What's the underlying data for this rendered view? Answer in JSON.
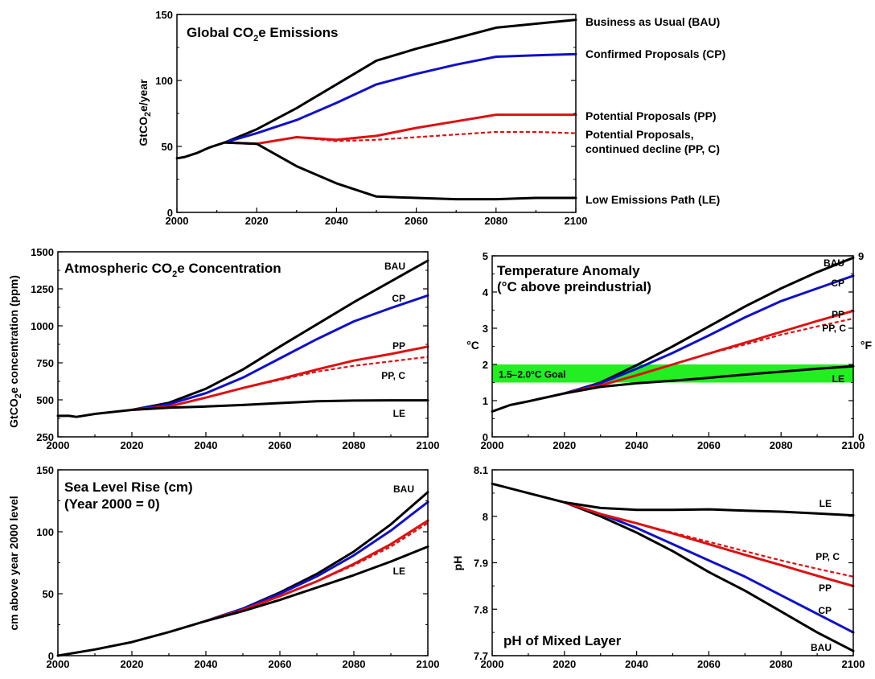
{
  "colors": {
    "black": "#000000",
    "blue": "#1010c8",
    "red": "#dd1111",
    "green": "#22ee22"
  },
  "chart_data": [
    {
      "id": "emissions",
      "type": "line",
      "title": "Global CO",
      "title_sub": "2",
      "title_rest": "e Emissions",
      "ylabel": "GtCO",
      "ylabel_sub": "2",
      "ylabel_rest": "e/year",
      "xlim": [
        2000,
        2100
      ],
      "ylim": [
        0,
        150
      ],
      "xticks": [
        2000,
        2020,
        2040,
        2060,
        2080,
        2100
      ],
      "yticks": [
        0,
        50,
        100,
        150
      ],
      "series": [
        {
          "name": "Business as Usual (BAU)",
          "color": "black",
          "dashed": false,
          "x": [
            2000,
            2002,
            2005,
            2008,
            2012,
            2020,
            2030,
            2040,
            2050,
            2060,
            2070,
            2080,
            2090,
            2100
          ],
          "y": [
            41,
            42,
            45,
            49,
            53,
            63,
            79,
            97,
            115,
            124,
            132,
            140,
            143,
            146
          ]
        },
        {
          "name": "Confirmed Proposals (CP)",
          "color": "blue",
          "dashed": false,
          "x": [
            2012,
            2020,
            2030,
            2040,
            2050,
            2060,
            2070,
            2080,
            2090,
            2100
          ],
          "y": [
            53,
            60,
            70,
            83,
            97,
            105,
            112,
            118,
            119,
            120
          ]
        },
        {
          "name": "Potential Proposals (PP)",
          "color": "red",
          "dashed": false,
          "x": [
            2012,
            2020,
            2030,
            2040,
            2050,
            2060,
            2070,
            2080,
            2090,
            2100
          ],
          "y": [
            53,
            52,
            57,
            55,
            58,
            64,
            69,
            74,
            74,
            74
          ]
        },
        {
          "name": "Potential Proposals, continued decline (PP, C)",
          "label_lines": [
            "Potential Proposals,",
            "continued decline (PP, C)"
          ],
          "color": "red",
          "dashed": true,
          "x": [
            2020,
            2030,
            2040,
            2050,
            2060,
            2070,
            2080,
            2090,
            2100
          ],
          "y": [
            52,
            57,
            54,
            55,
            57,
            59,
            61,
            61,
            60
          ]
        },
        {
          "name": "Low Emissions Path (LE)",
          "color": "black",
          "dashed": false,
          "x": [
            2012,
            2020,
            2030,
            2040,
            2050,
            2060,
            2070,
            2080,
            2090,
            2100
          ],
          "y": [
            53,
            52,
            35,
            22,
            12,
            11,
            10,
            10,
            11,
            11
          ]
        }
      ]
    },
    {
      "id": "concentration",
      "type": "line",
      "title": "Atmospheric CO",
      "title_sub": "2",
      "title_rest": "e Concentration",
      "ylabel": "GtCO",
      "ylabel_sub": "2",
      "ylabel_rest": "e concentration (ppm)",
      "xlim": [
        2000,
        2100
      ],
      "ylim": [
        250,
        1500
      ],
      "xticks": [
        2000,
        2020,
        2040,
        2060,
        2080,
        2100
      ],
      "yticks": [
        250,
        500,
        750,
        1000,
        1250,
        1500
      ],
      "series": [
        {
          "name": "BAU",
          "color": "black",
          "dashed": false,
          "x": [
            2000,
            2003,
            2005,
            2010,
            2020,
            2030,
            2040,
            2050,
            2060,
            2070,
            2080,
            2090,
            2100
          ],
          "y": [
            392,
            392,
            385,
            405,
            432,
            480,
            575,
            705,
            860,
            1010,
            1160,
            1300,
            1440
          ]
        },
        {
          "name": "CP",
          "color": "blue",
          "dashed": false,
          "x": [
            2020,
            2030,
            2040,
            2050,
            2060,
            2070,
            2080,
            2090,
            2100
          ],
          "y": [
            432,
            470,
            545,
            650,
            780,
            910,
            1030,
            1120,
            1205
          ]
        },
        {
          "name": "PP",
          "color": "red",
          "dashed": false,
          "x": [
            2020,
            2030,
            2040,
            2050,
            2060,
            2070,
            2080,
            2090,
            2100
          ],
          "y": [
            432,
            455,
            515,
            580,
            640,
            705,
            765,
            810,
            860
          ]
        },
        {
          "name": "PP, C",
          "color": "red",
          "dashed": true,
          "x": [
            2050,
            2060,
            2070,
            2080,
            2090,
            2100
          ],
          "y": [
            580,
            635,
            690,
            730,
            760,
            790
          ]
        },
        {
          "name": "LE",
          "color": "black",
          "dashed": false,
          "x": [
            2020,
            2030,
            2040,
            2050,
            2060,
            2070,
            2080,
            2090,
            2100
          ],
          "y": [
            432,
            447,
            455,
            465,
            478,
            490,
            495,
            497,
            497
          ]
        }
      ]
    },
    {
      "id": "temperature",
      "type": "line",
      "title_lines": [
        "Temperature Anomaly",
        "(°C above preindustrial)"
      ],
      "ylabel": "°C",
      "ylabel_right": "°F",
      "xlim": [
        2000,
        2100
      ],
      "ylim": [
        0,
        5
      ],
      "xticks": [
        2000,
        2020,
        2040,
        2060,
        2080,
        2100
      ],
      "yticks": [
        0,
        1,
        2,
        3,
        4,
        5
      ],
      "yticks_right": [
        0,
        9
      ],
      "goal_band": {
        "from": 1.5,
        "to": 2.0,
        "label": "1.5–2.0°C Goal"
      },
      "series": [
        {
          "name": "BAU",
          "color": "black",
          "dashed": false,
          "x": [
            2000,
            2005,
            2010,
            2020,
            2030,
            2040,
            2050,
            2060,
            2070,
            2080,
            2090,
            2100
          ],
          "y": [
            0.7,
            0.88,
            0.98,
            1.2,
            1.5,
            1.98,
            2.5,
            3.05,
            3.6,
            4.1,
            4.55,
            4.95
          ]
        },
        {
          "name": "CP",
          "color": "blue",
          "dashed": false,
          "x": [
            2020,
            2030,
            2040,
            2050,
            2060,
            2070,
            2080,
            2090,
            2100
          ],
          "y": [
            1.2,
            1.48,
            1.88,
            2.32,
            2.8,
            3.3,
            3.75,
            4.1,
            4.45
          ]
        },
        {
          "name": "PP",
          "color": "red",
          "dashed": false,
          "x": [
            2020,
            2030,
            2040,
            2050,
            2060,
            2070,
            2080,
            2090,
            2100
          ],
          "y": [
            1.2,
            1.42,
            1.7,
            2.0,
            2.3,
            2.6,
            2.9,
            3.2,
            3.48
          ]
        },
        {
          "name": "PP, C",
          "color": "red",
          "dashed": true,
          "x": [
            2050,
            2060,
            2070,
            2080,
            2090,
            2100
          ],
          "y": [
            2.0,
            2.3,
            2.55,
            2.82,
            3.05,
            3.27
          ]
        },
        {
          "name": "LE",
          "color": "black",
          "dashed": false,
          "x": [
            2020,
            2030,
            2040,
            2050,
            2060,
            2070,
            2080,
            2090,
            2100
          ],
          "y": [
            1.2,
            1.38,
            1.48,
            1.55,
            1.63,
            1.72,
            1.8,
            1.88,
            1.95
          ]
        }
      ]
    },
    {
      "id": "sealevel",
      "type": "line",
      "title_lines": [
        "Sea Level Rise (cm)",
        "(Year 2000 = 0)"
      ],
      "ylabel": "cm above year 2000 level",
      "xlim": [
        2000,
        2100
      ],
      "ylim": [
        0,
        150
      ],
      "xticks": [
        2000,
        2020,
        2040,
        2060,
        2080,
        2100
      ],
      "yticks": [
        0,
        50,
        100,
        150
      ],
      "series": [
        {
          "name": "BAU",
          "color": "black",
          "dashed": false,
          "x": [
            2000,
            2010,
            2020,
            2030,
            2040,
            2050,
            2060,
            2070,
            2080,
            2090,
            2100
          ],
          "y": [
            0,
            5,
            11,
            19,
            28,
            38,
            51,
            66,
            84,
            106,
            132
          ]
        },
        {
          "name": "CP",
          "color": "blue",
          "dashed": false,
          "x": [
            2040,
            2050,
            2060,
            2070,
            2080,
            2090,
            2100
          ],
          "y": [
            28,
            38,
            50,
            64,
            81,
            101,
            124
          ]
        },
        {
          "name": "PP",
          "color": "red",
          "dashed": false,
          "x": [
            2040,
            2050,
            2060,
            2070,
            2080,
            2090,
            2100
          ],
          "y": [
            28,
            37,
            48,
            60,
            74,
            90,
            109
          ]
        },
        {
          "name": "PP, C",
          "color": "red",
          "dashed": true,
          "x": [
            2060,
            2070,
            2080,
            2090,
            2100
          ],
          "y": [
            48,
            60,
            73,
            88,
            107
          ]
        },
        {
          "name": "LE",
          "color": "black",
          "dashed": false,
          "x": [
            2040,
            2050,
            2060,
            2070,
            2080,
            2090,
            2100
          ],
          "y": [
            28,
            36,
            45,
            55,
            65,
            76,
            88
          ]
        }
      ]
    },
    {
      "id": "ph",
      "type": "line",
      "title": "pH of Mixed Layer",
      "ylabel": "pH",
      "xlim": [
        2000,
        2100
      ],
      "ylim": [
        7.7,
        8.1
      ],
      "xticks": [
        2000,
        2020,
        2040,
        2060,
        2080,
        2100
      ],
      "yticks": [
        7.7,
        7.8,
        7.9,
        8.0,
        8.1
      ],
      "series": [
        {
          "name": "BAU",
          "color": "black",
          "dashed": false,
          "x": [
            2000,
            2010,
            2020,
            2030,
            2040,
            2050,
            2060,
            2070,
            2080,
            2090,
            2100
          ],
          "y": [
            8.07,
            8.05,
            8.03,
            8.0,
            7.965,
            7.925,
            7.88,
            7.84,
            7.795,
            7.75,
            7.71
          ]
        },
        {
          "name": "CP",
          "color": "blue",
          "dashed": false,
          "x": [
            2020,
            2030,
            2040,
            2050,
            2060,
            2070,
            2080,
            2090,
            2100
          ],
          "y": [
            8.03,
            8.005,
            7.975,
            7.94,
            7.905,
            7.87,
            7.83,
            7.79,
            7.75
          ]
        },
        {
          "name": "PP",
          "color": "red",
          "dashed": false,
          "x": [
            2020,
            2030,
            2040,
            2050,
            2060,
            2070,
            2080,
            2090,
            2100
          ],
          "y": [
            8.03,
            8.005,
            7.985,
            7.963,
            7.94,
            7.917,
            7.895,
            7.872,
            7.85
          ]
        },
        {
          "name": "PP, C",
          "color": "red",
          "dashed": true,
          "x": [
            2040,
            2050,
            2060,
            2070,
            2080,
            2090,
            2100
          ],
          "y": [
            7.985,
            7.965,
            7.945,
            7.925,
            7.905,
            7.887,
            7.87
          ]
        },
        {
          "name": "LE",
          "color": "black",
          "dashed": false,
          "x": [
            2020,
            2030,
            2040,
            2050,
            2060,
            2070,
            2080,
            2090,
            2100
          ],
          "y": [
            8.03,
            8.018,
            8.014,
            8.014,
            8.015,
            8.012,
            8.01,
            8.006,
            8.002
          ]
        }
      ]
    }
  ]
}
